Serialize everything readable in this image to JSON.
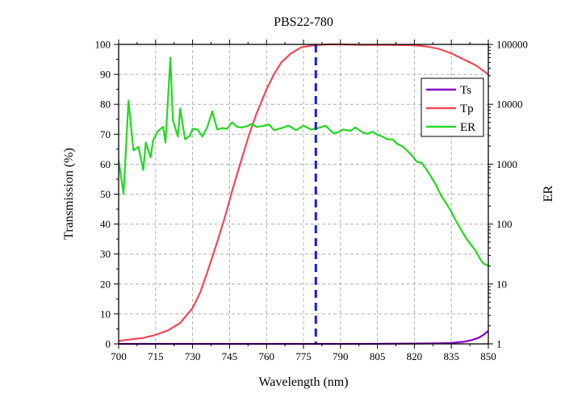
{
  "chart_data": {
    "type": "line",
    "title": "PBS22-780",
    "xlabel": "Wavelength (nm)",
    "ylabel": "Transmission (%)",
    "y2label": "ER",
    "xlim": [
      700,
      850
    ],
    "ylim": [
      0,
      100
    ],
    "y2lim": [
      1,
      100000
    ],
    "y2scale": "log",
    "x_ticks": [
      "700",
      "715",
      "730",
      "745",
      "760",
      "775",
      "790",
      "805",
      "820",
      "835",
      "850"
    ],
    "y_ticks": [
      "0",
      "10",
      "20",
      "30",
      "40",
      "50",
      "60",
      "70",
      "80",
      "90",
      "100"
    ],
    "y2_ticks": [
      "1",
      "10",
      "100",
      "1000",
      "10000",
      "100000"
    ],
    "grid": true,
    "legend_position": "right",
    "reference_line": {
      "x": 780,
      "style": "dashed",
      "color": "#1a1adb"
    },
    "series": [
      {
        "name": "Ts",
        "axis": "left",
        "color": "#8a00c8",
        "x": [
          700,
          760,
          800,
          820,
          830,
          835,
          840,
          843,
          846,
          848,
          850
        ],
        "y": [
          0,
          0,
          0,
          0.1,
          0.2,
          0.3,
          0.7,
          1.2,
          2.0,
          3.0,
          4.3
        ]
      },
      {
        "name": "Tp",
        "axis": "left",
        "color": "#f04a5a",
        "x": [
          700,
          705,
          710,
          715,
          720,
          725,
          730,
          733,
          736,
          740,
          743,
          746,
          750,
          753,
          756,
          760,
          763,
          766,
          770,
          774,
          778,
          781,
          785,
          790,
          800,
          810,
          820,
          825,
          830,
          835,
          840,
          845,
          850
        ],
        "y": [
          1,
          1.5,
          2,
          3,
          4.5,
          7,
          12,
          17,
          24,
          34,
          42,
          51,
          62,
          70,
          77,
          85,
          90,
          94,
          97,
          99,
          99.6,
          99.8,
          100,
          100,
          99.8,
          99.8,
          99.7,
          99.3,
          98.5,
          97,
          95,
          93,
          90
        ]
      },
      {
        "name": "ER",
        "axis": "right",
        "color": "#22d822",
        "x": [
          700,
          702,
          704,
          706,
          708,
          710,
          711,
          713,
          714,
          716,
          718,
          719,
          721,
          722,
          724,
          725,
          726,
          727,
          729,
          730,
          732,
          734,
          736,
          738,
          740,
          742,
          744,
          746,
          748,
          750,
          752,
          754,
          756,
          758,
          761,
          763,
          766,
          769,
          772,
          775,
          778,
          781,
          784,
          787,
          789,
          791,
          794,
          796,
          799,
          801,
          803,
          805,
          807,
          809,
          811,
          813,
          815,
          817,
          819,
          821,
          823,
          825,
          827,
          829,
          831,
          833,
          835,
          837,
          839,
          841,
          843,
          845,
          847,
          848,
          850
        ],
        "y": [
          1150,
          320,
          11500,
          1700,
          1950,
          800,
          2300,
          1300,
          2500,
          3600,
          4200,
          2300,
          60000,
          5500,
          2900,
          8500,
          4500,
          2600,
          3000,
          3900,
          3800,
          2900,
          4200,
          7600,
          3800,
          4000,
          3900,
          5000,
          4200,
          4100,
          4300,
          4700,
          4200,
          4300,
          4600,
          3700,
          4000,
          4400,
          3700,
          4400,
          3800,
          4000,
          4400,
          3300,
          3400,
          3800,
          3600,
          4100,
          3400,
          3200,
          3500,
          3100,
          2900,
          2600,
          2600,
          2200,
          2000,
          1700,
          1400,
          1100,
          1050,
          800,
          600,
          430,
          290,
          220,
          160,
          110,
          80,
          58,
          45,
          35,
          25,
          22,
          20
        ]
      }
    ]
  }
}
